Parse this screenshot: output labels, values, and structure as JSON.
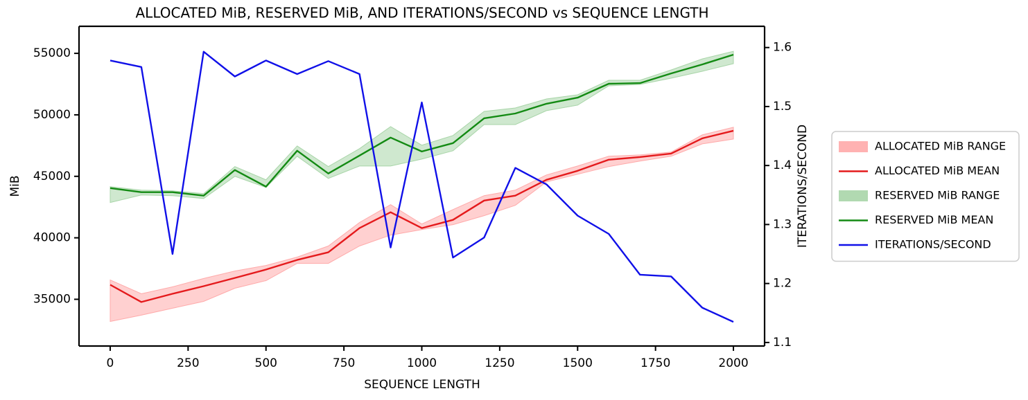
{
  "chart_data": {
    "type": "line",
    "title": "ALLOCATED MiB, RESERVED MiB, AND ITERATIONS/SECOND vs SEQUENCE LENGTH",
    "xlabel": "SEQUENCE LENGTH",
    "ylabel": "MiB",
    "y2label": "ITERATIONS/SECOND",
    "x": [
      0,
      100,
      200,
      300,
      400,
      500,
      600,
      700,
      800,
      900,
      1000,
      1100,
      1200,
      1300,
      1400,
      1500,
      1600,
      1700,
      1800,
      1900,
      2000
    ],
    "xlim": [
      -100,
      2100
    ],
    "xticks": [
      0,
      250,
      500,
      750,
      1000,
      1250,
      1500,
      1750,
      2000
    ],
    "ylim": [
      31200,
      57200
    ],
    "yticks": [
      35000,
      40000,
      45000,
      50000,
      55000
    ],
    "y2lim": [
      1.094,
      1.636
    ],
    "y2ticks": [
      1.1,
      1.2,
      1.3,
      1.4,
      1.5,
      1.6
    ],
    "legend": "outside right",
    "series": [
      {
        "name": "ALLOCATED MiB RANGE",
        "type": "area",
        "color": "#ffaaaa",
        "lower": [
          33200,
          33710,
          34270,
          34830,
          35900,
          36520,
          37920,
          37920,
          39330,
          40220,
          40670,
          41070,
          41800,
          42640,
          44550,
          45170,
          45790,
          46240,
          46630,
          47640,
          48030
        ],
        "upper": [
          36570,
          35450,
          36010,
          36690,
          37300,
          37750,
          38430,
          39330,
          41240,
          42700,
          41120,
          42300,
          43430,
          43880,
          45110,
          45840,
          46630,
          46740,
          46970,
          48370,
          48990
        ]
      },
      {
        "name": "ALLOCATED MiB MEAN",
        "type": "line",
        "color": "#e41a1c",
        "values": [
          36180,
          34780,
          35450,
          36070,
          36740,
          37420,
          38200,
          38820,
          40790,
          42080,
          40790,
          41460,
          43030,
          43430,
          44720,
          45450,
          46350,
          46570,
          46850,
          48090,
          48710
        ]
      },
      {
        "name": "RESERVED MiB RANGE",
        "type": "area",
        "color": "#a8d5a8",
        "lower": [
          42870,
          43480,
          43430,
          43200,
          45000,
          44100,
          46630,
          44830,
          45840,
          45840,
          46400,
          47080,
          49210,
          49210,
          50340,
          50790,
          52360,
          52470,
          52980,
          53540,
          54160
        ],
        "upper": [
          44160,
          43880,
          43820,
          43600,
          45790,
          44720,
          47470,
          45790,
          47250,
          49040,
          47530,
          48320,
          50280,
          50560,
          51290,
          51630,
          52810,
          52810,
          53650,
          54550,
          55170
        ]
      },
      {
        "name": "RESERVED MiB MEAN",
        "type": "line",
        "color": "#138a13",
        "values": [
          44040,
          43710,
          43710,
          43430,
          45510,
          44160,
          47080,
          45230,
          46690,
          48150,
          47020,
          47700,
          49720,
          50110,
          50900,
          51400,
          52530,
          52580,
          53370,
          54100,
          54890
        ]
      },
      {
        "name": "ITERATIONS/SECOND",
        "type": "line",
        "axis": "y2",
        "color": "#1010e8",
        "values": [
          1.578,
          1.567,
          1.25,
          1.593,
          1.551,
          1.578,
          1.555,
          1.577,
          1.555,
          1.261,
          1.507,
          1.244,
          1.278,
          1.396,
          1.368,
          1.315,
          1.284,
          1.215,
          1.212,
          1.159,
          1.135
        ]
      }
    ]
  }
}
